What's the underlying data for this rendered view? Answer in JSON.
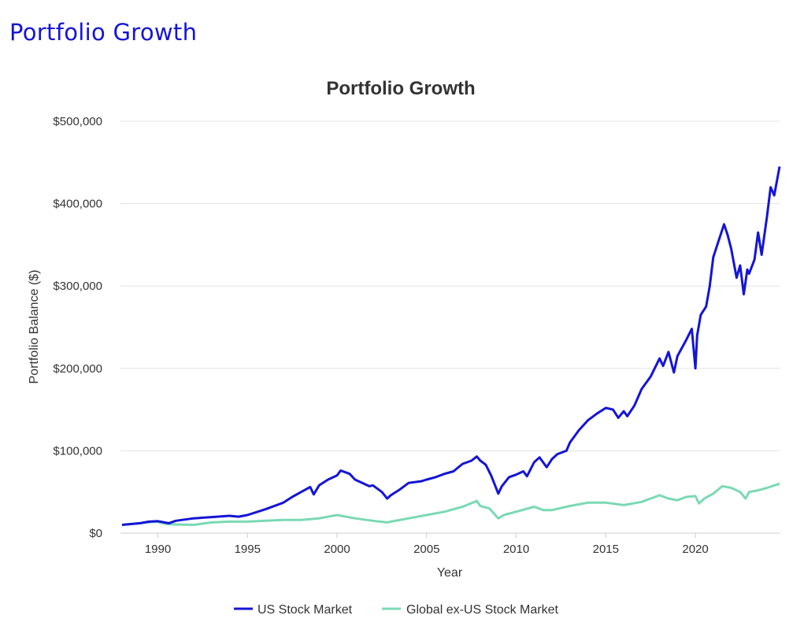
{
  "page": {
    "heading": "Portfolio Growth"
  },
  "chart_data": {
    "type": "line",
    "title": "Portfolio Growth",
    "xlabel": "Year",
    "ylabel": "Portfolio Balance ($)",
    "xlim": [
      1988,
      2024.7
    ],
    "ylim": [
      0,
      500000
    ],
    "xticks": [
      1990,
      1995,
      2000,
      2005,
      2010,
      2015,
      2020
    ],
    "yticks": [
      0,
      100000,
      200000,
      300000,
      400000,
      500000
    ],
    "ytick_labels": [
      "$0",
      "$100,000",
      "$200,000",
      "$300,000",
      "$400,000",
      "$500,000"
    ],
    "grid": true,
    "legend_position": "bottom-center",
    "series": [
      {
        "name": "US Stock Market",
        "color": "#1414d8",
        "x": [
          1988,
          1989,
          1989.5,
          1990,
          1990.6,
          1990.8,
          1991,
          1992,
          1993,
          1994,
          1994.5,
          1995,
          1996,
          1997,
          1997.5,
          1998,
          1998.5,
          1998.7,
          1999,
          1999.5,
          2000,
          2000.2,
          2000.7,
          2001,
          2001.3,
          2001.8,
          2002,
          2002.5,
          2002.8,
          2003,
          2003.5,
          2004,
          2004.7,
          2005,
          2005.5,
          2006,
          2006.5,
          2007,
          2007.5,
          2007.8,
          2008,
          2008.3,
          2008.6,
          2009,
          2009.2,
          2009.6,
          2010,
          2010.4,
          2010.6,
          2011,
          2011.3,
          2011.7,
          2012,
          2012.3,
          2012.8,
          2013,
          2013.5,
          2014,
          2014.5,
          2015,
          2015.4,
          2015.7,
          2016,
          2016.2,
          2016.6,
          2017,
          2017.5,
          2018,
          2018.2,
          2018.5,
          2018.8,
          2019,
          2019.5,
          2019.8,
          2020,
          2020.1,
          2020.3,
          2020.6,
          2020.8,
          2021,
          2021.3,
          2021.6,
          2021.8,
          2022,
          2022.3,
          2022.5,
          2022.7,
          2022.9,
          2023,
          2023.3,
          2023.5,
          2023.7,
          2024,
          2024.2,
          2024.4,
          2024.7
        ],
        "values": [
          10000,
          12000,
          14000,
          14500,
          12000,
          13500,
          15000,
          18000,
          19500,
          21000,
          20000,
          22000,
          29000,
          37000,
          44000,
          50000,
          56000,
          47000,
          58000,
          65000,
          70000,
          76000,
          72000,
          65000,
          62000,
          57000,
          58000,
          50000,
          42000,
          46000,
          53000,
          61000,
          63000,
          65000,
          68000,
          72000,
          75000,
          84000,
          88000,
          93000,
          88000,
          83000,
          70000,
          48000,
          57000,
          68000,
          71000,
          75000,
          69000,
          86000,
          92000,
          80000,
          90000,
          96000,
          100000,
          110000,
          125000,
          137000,
          145000,
          152000,
          150000,
          140000,
          148000,
          142000,
          155000,
          175000,
          190000,
          212000,
          203000,
          220000,
          195000,
          215000,
          235000,
          248000,
          200000,
          240000,
          265000,
          275000,
          300000,
          335000,
          355000,
          375000,
          362000,
          345000,
          310000,
          325000,
          290000,
          320000,
          315000,
          332000,
          365000,
          338000,
          385000,
          420000,
          410000,
          445000
        ]
      },
      {
        "name": "Global ex-US Stock Market",
        "color": "#7bd9b5",
        "x": [
          1988,
          1989,
          1989.9,
          1990.5,
          1991,
          1992,
          1993,
          1994,
          1995,
          1996,
          1997,
          1998,
          1999,
          2000,
          2000.5,
          2001,
          2002,
          2002.8,
          2003,
          2004,
          2005,
          2006,
          2007,
          2007.8,
          2008,
          2008.5,
          2009,
          2009.3,
          2010,
          2011,
          2011.5,
          2012,
          2013,
          2014,
          2015,
          2016,
          2017,
          2018,
          2018.5,
          2019,
          2019.5,
          2020,
          2020.2,
          2020.5,
          2021,
          2021.5,
          2022,
          2022.5,
          2022.8,
          2023,
          2023.5,
          2024,
          2024.7
        ],
        "values": [
          10000,
          12000,
          14000,
          11000,
          10500,
          10000,
          13000,
          14000,
          14000,
          15000,
          16000,
          16000,
          18000,
          22000,
          20000,
          18000,
          15000,
          13000,
          14000,
          18000,
          22000,
          26000,
          32000,
          39000,
          33000,
          30000,
          18000,
          22000,
          26000,
          32000,
          28000,
          28000,
          33000,
          37000,
          37000,
          34000,
          38000,
          46000,
          42000,
          40000,
          44000,
          45000,
          36000,
          42000,
          48000,
          57000,
          55000,
          50000,
          42000,
          50000,
          52000,
          55000,
          60000
        ]
      }
    ]
  }
}
